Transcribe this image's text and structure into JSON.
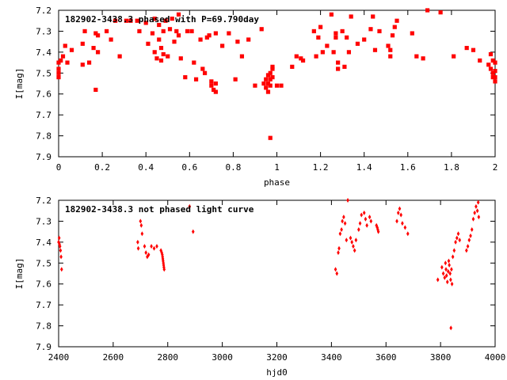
{
  "chart_data": [
    {
      "type": "scatter",
      "title": "182902-3438.3 phased with P=69.790day",
      "xlabel": "phase",
      "ylabel": "I[mag]",
      "xlim": [
        0,
        2
      ],
      "ylim": [
        7.2,
        7.9
      ],
      "y_inverted": true,
      "grid": false,
      "color": "#ff0000",
      "xticks": [
        "0",
        "0.2",
        "0.4",
        "0.6",
        "0.8",
        "1",
        "1.2",
        "1.4",
        "1.6",
        "1.8",
        "2"
      ],
      "yticks": [
        "7.2",
        "7.3",
        "7.4",
        "7.5",
        "7.6",
        "7.7",
        "7.8",
        "7.9"
      ],
      "points": [
        [
          0.0,
          7.45
        ],
        [
          0.0,
          7.48
        ],
        [
          0.0,
          7.5
        ],
        [
          0.0,
          7.52
        ],
        [
          0.01,
          7.44
        ],
        [
          0.02,
          7.42
        ],
        [
          0.03,
          7.37
        ],
        [
          0.04,
          7.45
        ],
        [
          0.06,
          7.39
        ],
        [
          0.11,
          7.46
        ],
        [
          0.11,
          7.36
        ],
        [
          0.12,
          7.3
        ],
        [
          0.14,
          7.45
        ],
        [
          0.16,
          7.38
        ],
        [
          0.17,
          7.31
        ],
        [
          0.17,
          7.58
        ],
        [
          0.18,
          7.4
        ],
        [
          0.18,
          7.32
        ],
        [
          0.22,
          7.3
        ],
        [
          0.24,
          7.34
        ],
        [
          0.26,
          7.25
        ],
        [
          0.28,
          7.42
        ],
        [
          0.31,
          7.25
        ],
        [
          0.33,
          7.25
        ],
        [
          0.36,
          7.25
        ],
        [
          0.37,
          7.3
        ],
        [
          0.4,
          7.26
        ],
        [
          0.41,
          7.36
        ],
        [
          0.43,
          7.31
        ],
        [
          0.44,
          7.24
        ],
        [
          0.44,
          7.4
        ],
        [
          0.45,
          7.43
        ],
        [
          0.46,
          7.27
        ],
        [
          0.46,
          7.34
        ],
        [
          0.47,
          7.38
        ],
        [
          0.47,
          7.44
        ],
        [
          0.48,
          7.3
        ],
        [
          0.48,
          7.41
        ],
        [
          0.49,
          7.25
        ],
        [
          0.5,
          7.42
        ],
        [
          0.51,
          7.29
        ],
        [
          0.52,
          7.24
        ],
        [
          0.53,
          7.35
        ],
        [
          0.54,
          7.3
        ],
        [
          0.55,
          7.22
        ],
        [
          0.55,
          7.32
        ],
        [
          0.56,
          7.43
        ],
        [
          0.58,
          7.52
        ],
        [
          0.59,
          7.3
        ],
        [
          0.61,
          7.3
        ],
        [
          0.62,
          7.45
        ],
        [
          0.63,
          7.53
        ],
        [
          0.65,
          7.34
        ],
        [
          0.66,
          7.48
        ],
        [
          0.67,
          7.5
        ],
        [
          0.68,
          7.33
        ],
        [
          0.69,
          7.32
        ],
        [
          0.7,
          7.54
        ],
        [
          0.7,
          7.56
        ],
        [
          0.71,
          7.58
        ],
        [
          0.72,
          7.31
        ],
        [
          0.72,
          7.55
        ],
        [
          0.72,
          7.59
        ],
        [
          0.75,
          7.37
        ],
        [
          0.78,
          7.31
        ],
        [
          0.81,
          7.53
        ],
        [
          0.82,
          7.35
        ],
        [
          0.84,
          7.42
        ],
        [
          0.87,
          7.34
        ],
        [
          0.9,
          7.56
        ],
        [
          0.93,
          7.29
        ],
        [
          0.94,
          7.55
        ],
        [
          0.95,
          7.53
        ],
        [
          0.95,
          7.57
        ],
        [
          0.96,
          7.55
        ],
        [
          0.96,
          7.51
        ],
        [
          0.97,
          7.53
        ],
        [
          0.97,
          7.56
        ],
        [
          0.97,
          7.5
        ],
        [
          0.98,
          7.48
        ],
        [
          0.98,
          7.52
        ],
        [
          0.98,
          7.47
        ],
        [
          0.96,
          7.59
        ],
        [
          0.97,
          7.81
        ],
        [
          1.0,
          7.56
        ],
        [
          1.02,
          7.56
        ],
        [
          1.07,
          7.47
        ],
        [
          1.09,
          7.42
        ],
        [
          1.11,
          7.43
        ],
        [
          1.12,
          7.44
        ],
        [
          1.17,
          7.3
        ],
        [
          1.18,
          7.42
        ],
        [
          1.19,
          7.33
        ],
        [
          1.2,
          7.28
        ],
        [
          1.21,
          7.4
        ],
        [
          1.23,
          7.37
        ],
        [
          1.25,
          7.22
        ],
        [
          1.26,
          7.4
        ],
        [
          1.27,
          7.33
        ],
        [
          1.27,
          7.31
        ],
        [
          1.28,
          7.48
        ],
        [
          1.28,
          7.45
        ],
        [
          1.3,
          7.3
        ],
        [
          1.31,
          7.47
        ],
        [
          1.32,
          7.33
        ],
        [
          1.33,
          7.4
        ],
        [
          1.34,
          7.23
        ],
        [
          1.37,
          7.36
        ],
        [
          1.4,
          7.34
        ],
        [
          1.43,
          7.29
        ],
        [
          1.44,
          7.23
        ],
        [
          1.45,
          7.39
        ],
        [
          1.47,
          7.3
        ],
        [
          1.51,
          7.37
        ],
        [
          1.52,
          7.42
        ],
        [
          1.52,
          7.39
        ],
        [
          1.53,
          7.32
        ],
        [
          1.54,
          7.28
        ],
        [
          1.55,
          7.25
        ],
        [
          1.62,
          7.31
        ],
        [
          1.64,
          7.42
        ],
        [
          1.67,
          7.43
        ],
        [
          1.69,
          7.2
        ],
        [
          1.75,
          7.21
        ],
        [
          1.81,
          7.42
        ],
        [
          1.87,
          7.38
        ],
        [
          1.9,
          7.39
        ],
        [
          1.93,
          7.44
        ],
        [
          1.97,
          7.46
        ],
        [
          1.98,
          7.41
        ],
        [
          1.98,
          7.48
        ],
        [
          1.99,
          7.5
        ],
        [
          1.99,
          7.52
        ],
        [
          1.99,
          7.44
        ],
        [
          2.0,
          7.45
        ],
        [
          2.0,
          7.49
        ],
        [
          2.0,
          7.52
        ],
        [
          2.0,
          7.54
        ]
      ]
    },
    {
      "type": "scatter",
      "title": "182902-3438.3 not phased light curve",
      "xlabel": "hjd0",
      "ylabel": "I[mag]",
      "xlim": [
        2400,
        4000
      ],
      "ylim": [
        7.2,
        7.9
      ],
      "y_inverted": true,
      "grid": false,
      "color": "#ff0000",
      "xticks": [
        "2400",
        "2600",
        "2800",
        "3000",
        "3200",
        "3400",
        "3600",
        "3800",
        "4000"
      ],
      "yticks": [
        "7.2",
        "7.3",
        "7.4",
        "7.5",
        "7.6",
        "7.7",
        "7.8",
        "7.9"
      ],
      "points": [
        [
          2400,
          7.4
        ],
        [
          2402,
          7.38
        ],
        [
          2403,
          7.41
        ],
        [
          2405,
          7.42
        ],
        [
          2407,
          7.44
        ],
        [
          2409,
          7.47
        ],
        [
          2411,
          7.53
        ],
        [
          2690,
          7.4
        ],
        [
          2692,
          7.43
        ],
        [
          2700,
          7.3
        ],
        [
          2703,
          7.32
        ],
        [
          2706,
          7.36
        ],
        [
          2715,
          7.42
        ],
        [
          2720,
          7.45
        ],
        [
          2725,
          7.47
        ],
        [
          2730,
          7.46
        ],
        [
          2740,
          7.42
        ],
        [
          2750,
          7.43
        ],
        [
          2760,
          7.42
        ],
        [
          2775,
          7.44
        ],
        [
          2778,
          7.45
        ],
        [
          2780,
          7.46
        ],
        [
          2781,
          7.47
        ],
        [
          2782,
          7.48
        ],
        [
          2783,
          7.49
        ],
        [
          2784,
          7.5
        ],
        [
          2785,
          7.51
        ],
        [
          2786,
          7.52
        ],
        [
          2787,
          7.53
        ],
        [
          2880,
          7.23
        ],
        [
          2893,
          7.35
        ],
        [
          3415,
          7.53
        ],
        [
          3420,
          7.55
        ],
        [
          3425,
          7.45
        ],
        [
          3428,
          7.43
        ],
        [
          3432,
          7.36
        ],
        [
          3437,
          7.34
        ],
        [
          3440,
          7.3
        ],
        [
          3445,
          7.28
        ],
        [
          3450,
          7.31
        ],
        [
          3455,
          7.39
        ],
        [
          3460,
          7.2
        ],
        [
          3470,
          7.38
        ],
        [
          3475,
          7.4
        ],
        [
          3480,
          7.42
        ],
        [
          3485,
          7.44
        ],
        [
          3490,
          7.39
        ],
        [
          3500,
          7.34
        ],
        [
          3505,
          7.31
        ],
        [
          3510,
          7.27
        ],
        [
          3520,
          7.26
        ],
        [
          3525,
          7.29
        ],
        [
          3530,
          7.32
        ],
        [
          3540,
          7.28
        ],
        [
          3545,
          7.3
        ],
        [
          3565,
          7.32
        ],
        [
          3568,
          7.33
        ],
        [
          3570,
          7.34
        ],
        [
          3572,
          7.35
        ],
        [
          3640,
          7.3
        ],
        [
          3645,
          7.26
        ],
        [
          3650,
          7.24
        ],
        [
          3655,
          7.27
        ],
        [
          3660,
          7.31
        ],
        [
          3670,
          7.33
        ],
        [
          3680,
          7.36
        ],
        [
          3790,
          7.58
        ],
        [
          3805,
          7.52
        ],
        [
          3810,
          7.55
        ],
        [
          3815,
          7.57
        ],
        [
          3818,
          7.5
        ],
        [
          3820,
          7.53
        ],
        [
          3822,
          7.56
        ],
        [
          3825,
          7.59
        ],
        [
          3828,
          7.54
        ],
        [
          3830,
          7.49
        ],
        [
          3832,
          7.51
        ],
        [
          3835,
          7.55
        ],
        [
          3837,
          7.58
        ],
        [
          3840,
          7.53
        ],
        [
          3838,
          7.81
        ],
        [
          3842,
          7.6
        ],
        [
          3845,
          7.47
        ],
        [
          3850,
          7.44
        ],
        [
          3855,
          7.4
        ],
        [
          3860,
          7.38
        ],
        [
          3865,
          7.36
        ],
        [
          3870,
          7.39
        ],
        [
          3895,
          7.44
        ],
        [
          3900,
          7.42
        ],
        [
          3905,
          7.39
        ],
        [
          3910,
          7.37
        ],
        [
          3915,
          7.34
        ],
        [
          3920,
          7.29
        ],
        [
          3925,
          7.26
        ],
        [
          3930,
          7.23
        ],
        [
          3935,
          7.25
        ],
        [
          3938,
          7.21
        ],
        [
          3940,
          7.28
        ]
      ]
    }
  ]
}
